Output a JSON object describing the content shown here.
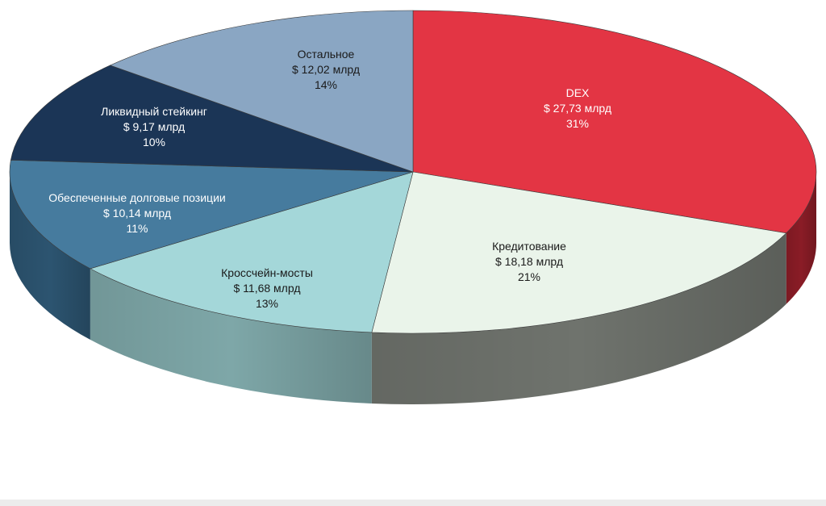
{
  "chart_data": {
    "type": "pie",
    "style": "3d",
    "title": "",
    "currency": "$",
    "unit": "млрд",
    "slices": [
      {
        "name": "DEX",
        "value_label": "$ 27,73 млрд",
        "value": 27.73,
        "percent_label": "31%",
        "percent": 31,
        "color": "#e33544",
        "side_color": "#8a1c26",
        "text_color": "#ffffff"
      },
      {
        "name": "Кредитование",
        "value_label": "$ 18,18 млрд",
        "value": 18.18,
        "percent_label": "21%",
        "percent": 21,
        "color": "#eaf4ea",
        "side_color": "#6f736d",
        "text_color": "#1a1a1a"
      },
      {
        "name": "Кроссчейн-мосты",
        "value_label": "$ 11,68 млрд",
        "value": 11.68,
        "percent_label": "13%",
        "percent": 13,
        "color": "#a4d7d9",
        "side_color": "#7ea7a8",
        "text_color": "#1a1a1a"
      },
      {
        "name": "Обеспеченные долговые позиции",
        "value_label": "$ 10,14 млрд",
        "value": 10.14,
        "percent_label": "11%",
        "percent": 11,
        "color": "#467b9e",
        "side_color": "#2c5470",
        "text_color": "#ffffff"
      },
      {
        "name": "Ликвидный стейкинг",
        "value_label": "$ 9,17 млрд",
        "value": 9.17,
        "percent_label": "10%",
        "percent": 10,
        "color": "#1b3556",
        "side_color": "#13263e",
        "text_color": "#ffffff"
      },
      {
        "name": "Остальное",
        "value_label": "$ 12,02 млрд",
        "value": 12.02,
        "percent_label": "14%",
        "percent": 14,
        "color": "#8aa6c3",
        "side_color": "#627b96",
        "text_color": "#1a1a1a"
      }
    ]
  }
}
